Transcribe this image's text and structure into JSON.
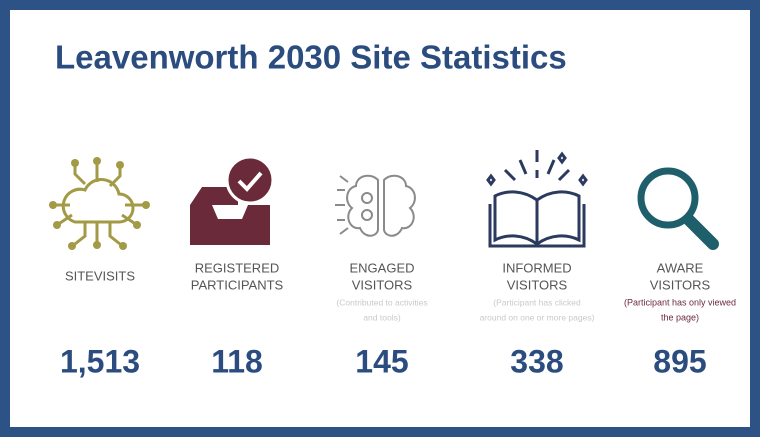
{
  "title": "Leavenworth 2030 Site Statistics",
  "stats": [
    {
      "label": [
        "SITEVISITS"
      ],
      "note": [],
      "value": "1,513"
    },
    {
      "label": [
        "REGISTERED",
        "PARTICIPANTS"
      ],
      "note": [],
      "value": "118"
    },
    {
      "label": [
        "ENGAGED",
        "VISITORS"
      ],
      "note": [
        "(Contributed to activities",
        "and tools)"
      ],
      "value": "145"
    },
    {
      "label": [
        "INFORMED",
        "VISITORS"
      ],
      "note": [
        "(Participant has clicked",
        "around on one or more pages)"
      ],
      "value": "338"
    },
    {
      "label": [
        "AWARE",
        "VISITORS"
      ],
      "note": [
        "(Participant has only viewed",
        "the page)"
      ],
      "value": "895"
    }
  ]
}
